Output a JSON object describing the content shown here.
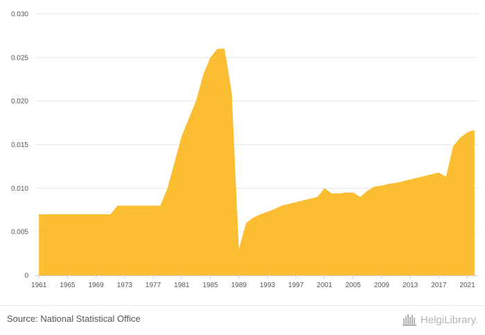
{
  "chart_data": {
    "type": "area",
    "title": "",
    "xlabel": "",
    "ylabel": "",
    "xlim": [
      1961,
      2022
    ],
    "ylim": [
      0,
      0.03
    ],
    "yticks": [
      "0",
      "0.005",
      "0.010",
      "0.015",
      "0.020",
      "0.025",
      "0.030"
    ],
    "xticks": [
      "1961",
      "1965",
      "1969",
      "1973",
      "1977",
      "1981",
      "1985",
      "1989",
      "1993",
      "1997",
      "2001",
      "2005",
      "2009",
      "2013",
      "2017",
      "2021"
    ],
    "grid": true,
    "legend": "none",
    "color": "#fbbe33",
    "series": [
      {
        "x": [
          1961,
          1962,
          1963,
          1964,
          1965,
          1966,
          1967,
          1968,
          1969,
          1970,
          1971,
          1972,
          1973,
          1974,
          1975,
          1976,
          1977,
          1978,
          1979,
          1980,
          1981,
          1982,
          1983,
          1984,
          1985,
          1986,
          1987,
          1988,
          1989,
          1990,
          1991,
          1992,
          1993,
          1994,
          1995,
          1996,
          1997,
          1998,
          1999,
          2000,
          2001,
          2002,
          2003,
          2004,
          2005,
          2006,
          2007,
          2008,
          2009,
          2010,
          2011,
          2012,
          2013,
          2014,
          2015,
          2016,
          2017,
          2018,
          2019,
          2020,
          2021,
          2022
        ],
        "values": [
          0.007,
          0.007,
          0.007,
          0.007,
          0.007,
          0.007,
          0.007,
          0.007,
          0.007,
          0.007,
          0.007,
          0.008,
          0.008,
          0.008,
          0.008,
          0.008,
          0.008,
          0.008,
          0.01,
          0.013,
          0.016,
          0.018,
          0.02,
          0.023,
          0.025,
          0.026,
          0.026,
          0.021,
          0.003,
          0.006,
          0.0066,
          0.007,
          0.0073,
          0.0076,
          0.008,
          0.0082,
          0.0084,
          0.0086,
          0.0088,
          0.009,
          0.01,
          0.0094,
          0.0094,
          0.0095,
          0.0095,
          0.009,
          0.0097,
          0.0102,
          0.0103,
          0.0105,
          0.0106,
          0.0108,
          0.011,
          0.0112,
          0.0114,
          0.0116,
          0.0118,
          0.0113,
          0.0148,
          0.0158,
          0.0164,
          0.0167
        ]
      }
    ]
  },
  "footer": {
    "source": "Source: National Statistical Office",
    "brand": "HelgiLibrary.",
    "brand_icon": "building-skyline-icon"
  }
}
